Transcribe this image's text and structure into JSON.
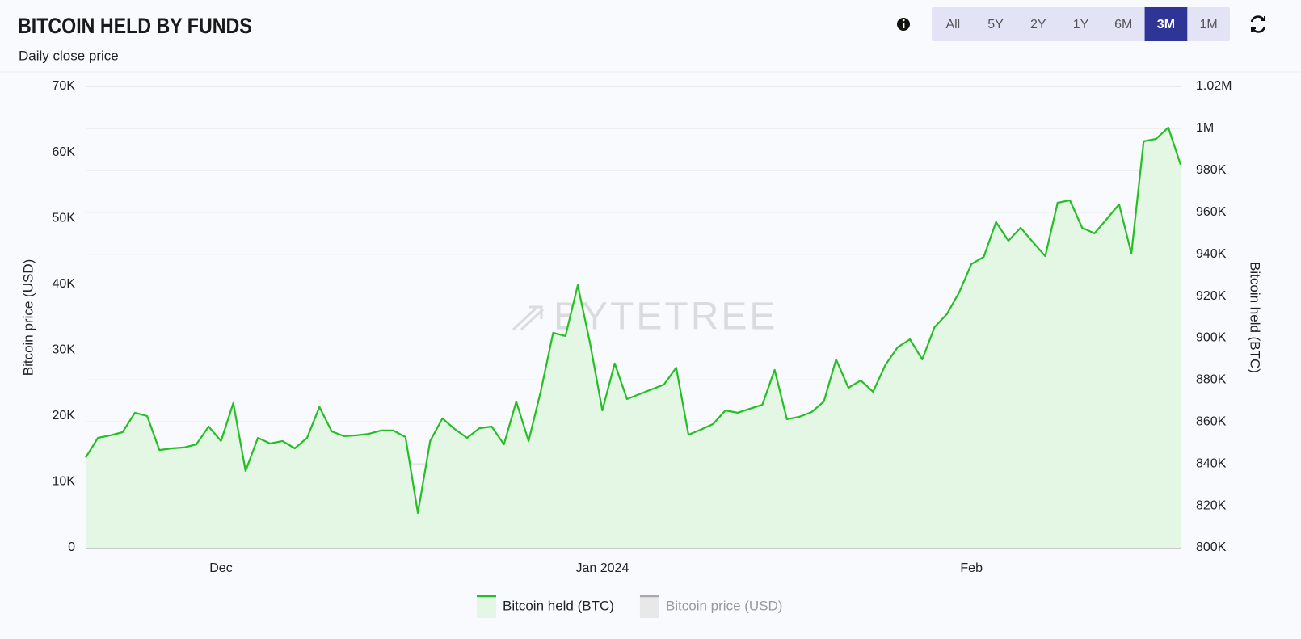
{
  "ui": {
    "buttons": [
      "All",
      "5Y",
      "2Y",
      "1Y",
      "6M",
      "3M",
      "1M"
    ],
    "active_button": 5
  },
  "chart_data": {
    "type": "line",
    "title": "BITCOIN HELD BY FUNDS",
    "subtitle": "Daily close price",
    "watermark": "BYTETREE",
    "y_label": "Bitcoin price (USD)",
    "y2_label": "Bitcoin held (BTC)",
    "categories": [
      null,
      null,
      null,
      null,
      null,
      null,
      null,
      null,
      null,
      null,
      null,
      "Dec",
      null,
      null,
      null,
      null,
      null,
      null,
      null,
      null,
      null,
      null,
      null,
      null,
      null,
      null,
      null,
      null,
      null,
      null,
      null,
      null,
      null,
      null,
      null,
      null,
      null,
      null,
      null,
      null,
      null,
      null,
      "Jan 2024",
      null,
      null,
      null,
      null,
      null,
      null,
      null,
      null,
      null,
      null,
      null,
      null,
      null,
      null,
      null,
      null,
      null,
      null,
      null,
      null,
      null,
      null,
      null,
      null,
      null,
      null,
      null,
      null,
      null,
      "Feb",
      null,
      null,
      null,
      null,
      null,
      null,
      null,
      null,
      null,
      null,
      null,
      null,
      null,
      null,
      null,
      null,
      null
    ],
    "series": [
      {
        "name": "Bitcoin held (BTC)",
        "color": "#25bf25",
        "axis": "y2",
        "visible": true,
        "values": [
          843000,
          852400,
          853600,
          855100,
          864400,
          862800,
          846600,
          847400,
          847800,
          849300,
          857800,
          850900,
          869000,
          836600,
          852400,
          849700,
          850900,
          847400,
          852400,
          867100,
          855500,
          853200,
          853600,
          854300,
          855900,
          855900,
          852800,
          816600,
          850900,
          861700,
          856600,
          852400,
          857000,
          857800,
          849300,
          869700,
          850900,
          874800,
          902500,
          901000,
          925200,
          897500,
          865500,
          887900,
          870900,
          873200,
          875500,
          877800,
          885900,
          853900,
          856300,
          859000,
          865500,
          864400,
          866300,
          868200,
          884800,
          861300,
          862400,
          864700,
          869700,
          889800,
          876300,
          879800,
          874400,
          887100,
          895600,
          899400,
          889800,
          905200,
          911400,
          921800,
          935300,
          938700,
          955300,
          946400,
          952600,
          945700,
          939100,
          964500,
          965700,
          952600,
          949900,
          956800,
          963800,
          940300,
          993800,
          995000,
          1000400,
          982700
        ]
      },
      {
        "name": "Bitcoin price (USD)",
        "color": "#9a9a9a",
        "visible": false,
        "values": [
          null,
          null,
          null,
          null,
          null,
          null,
          null,
          null,
          null,
          null,
          null,
          null,
          null,
          null,
          null,
          null,
          null,
          null,
          null,
          null,
          null,
          null,
          null,
          null,
          null,
          null,
          null,
          null,
          null,
          null,
          null,
          null,
          null,
          null,
          null,
          null,
          null,
          null,
          null,
          null,
          null,
          null,
          null,
          null,
          null,
          null,
          null,
          null,
          null,
          null,
          null,
          null,
          null,
          null,
          null,
          null,
          null,
          null,
          null,
          null,
          null,
          null,
          null,
          null,
          null,
          null,
          null,
          null,
          null,
          null,
          null,
          null,
          null,
          null,
          null,
          null,
          null,
          null,
          null,
          null,
          null,
          null,
          null,
          null,
          null,
          null,
          null,
          null,
          null,
          null
        ]
      }
    ],
    "ylim": [
      0,
      70000
    ],
    "yticks": [
      0,
      {
        "value": 10000,
        "label": "10K"
      },
      {
        "value": 20000,
        "label": "20K"
      },
      {
        "value": 30000,
        "label": "30K"
      },
      {
        "value": 40000,
        "label": "40K"
      },
      {
        "value": 50000,
        "label": "50K"
      },
      {
        "value": 60000,
        "label": "60K"
      },
      {
        "value": 70000,
        "label": "70K"
      }
    ],
    "y2lim": [
      800000,
      1020000
    ],
    "y2ticks": [
      {
        "value": 800000,
        "label": "800K"
      },
      {
        "value": 820000,
        "label": "820K"
      },
      {
        "value": 840000,
        "label": "840K"
      },
      {
        "value": 860000,
        "label": "860K"
      },
      {
        "value": 880000,
        "label": "880K"
      },
      {
        "value": 900000,
        "label": "900K"
      },
      {
        "value": 920000,
        "label": "920K"
      },
      {
        "value": 940000,
        "label": "940K"
      },
      {
        "value": 960000,
        "label": "960K"
      },
      {
        "value": 980000,
        "label": "980K"
      },
      {
        "value": 1000000,
        "label": "1M"
      },
      {
        "value": 1020000,
        "label": "1.02M"
      }
    ],
    "grid": true,
    "area_fill": "#e4f6e4"
  }
}
